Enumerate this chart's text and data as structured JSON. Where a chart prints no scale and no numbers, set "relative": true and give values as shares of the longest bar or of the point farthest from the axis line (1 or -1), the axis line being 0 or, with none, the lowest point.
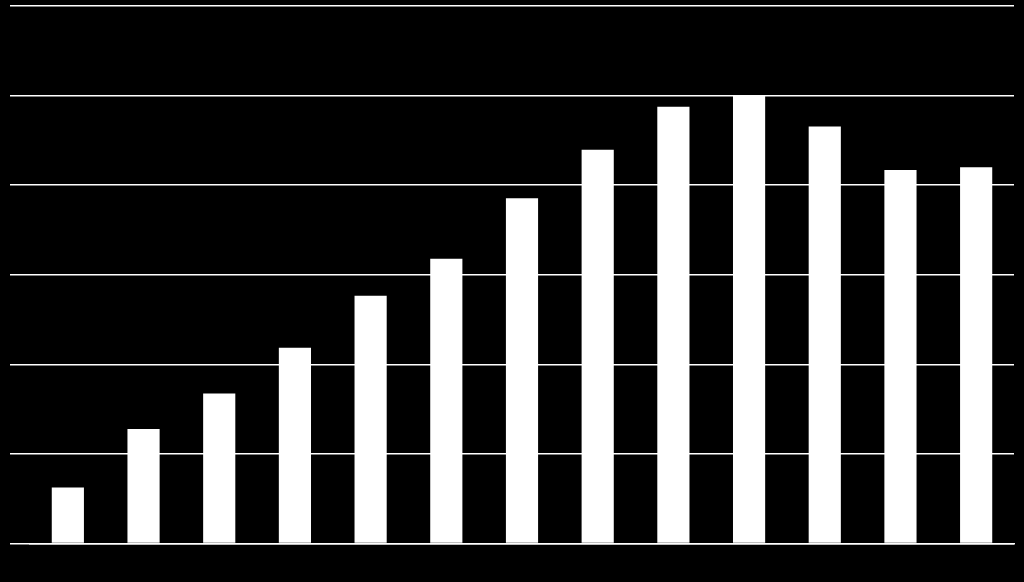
{
  "chart_data": {
    "type": "bar",
    "relative": true,
    "categories": [
      null,
      null,
      null,
      null,
      null,
      null,
      null,
      null,
      null,
      null,
      null,
      null,
      null
    ],
    "values": [
      0.125,
      0.256,
      0.335,
      0.437,
      0.553,
      0.636,
      0.771,
      0.879,
      0.975,
      1,
      0.931,
      0.834,
      0.84
    ],
    "color": "#ffffff",
    "grid": "y",
    "legend": false
  }
}
